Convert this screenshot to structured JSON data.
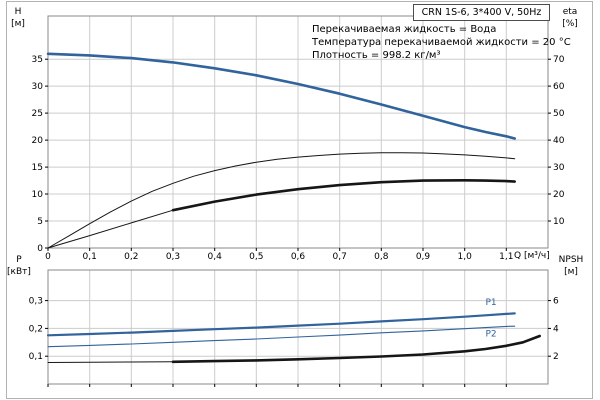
{
  "title": "CRN 1S-6, 3*400 V, 50Hz",
  "annotations": [
    "Перекачиваемая жидкость = Вода",
    "Температура перекачиваемой жидкости = 20 °C",
    "Плотность = 998.2 кг/м³"
  ],
  "axis_corners": {
    "top_left": {
      "name": "H",
      "unit": "[м]"
    },
    "top_right": {
      "name": "eta",
      "unit": "[%]"
    },
    "bottom_left": {
      "name": "P",
      "unit": "[кВт]"
    },
    "bottom_right": {
      "name": "NPSH",
      "unit": "[м]"
    }
  },
  "colors": {
    "blue": "#31639c",
    "black": "#161616",
    "grid": "#cccccc",
    "axis": "#8a8a8a"
  },
  "chart_data": [
    {
      "type": "line",
      "name": "head-efficiency",
      "x_axis": {
        "label": "Q [м³/ч]",
        "min": 0,
        "max": 1.2,
        "tick_values": [
          0,
          0.1,
          0.2,
          0.3,
          0.4,
          0.5,
          0.6,
          0.7,
          0.8,
          0.9,
          1.0,
          1.1
        ],
        "tick_labels": [
          "0",
          "0,1",
          "0,2",
          "0,3",
          "0,4",
          "0,5",
          "0,6",
          "0,7",
          "0,8",
          "0,9",
          "1,0",
          "1,1"
        ]
      },
      "y_left": {
        "label": "H [м]",
        "min": 0,
        "max": 43,
        "tick_values": [
          0,
          5,
          10,
          15,
          20,
          25,
          30,
          35
        ],
        "tick_labels": [
          "0",
          "5",
          "10",
          "15",
          "20",
          "25",
          "30",
          "35"
        ]
      },
      "y_right": {
        "label": "eta [%]",
        "min": 0,
        "max": 86,
        "tick_values": [
          10,
          20,
          30,
          40,
          50,
          60,
          70
        ],
        "tick_labels": [
          "10",
          "20",
          "30",
          "40",
          "50",
          "60",
          "70"
        ]
      },
      "series": [
        {
          "name": "head-curve",
          "axis": "left",
          "color": "#31639c",
          "width": 2.6,
          "points": [
            [
              0,
              36.0
            ],
            [
              0.1,
              35.7
            ],
            [
              0.2,
              35.2
            ],
            [
              0.3,
              34.4
            ],
            [
              0.4,
              33.3
            ],
            [
              0.5,
              32.0
            ],
            [
              0.6,
              30.4
            ],
            [
              0.7,
              28.6
            ],
            [
              0.8,
              26.6
            ],
            [
              0.9,
              24.5
            ],
            [
              1.0,
              22.4
            ],
            [
              1.05,
              21.5
            ],
            [
              1.1,
              20.7
            ],
            [
              1.12,
              20.3
            ]
          ]
        },
        {
          "name": "eta-pump",
          "axis": "right",
          "color": "#161616",
          "width": 1,
          "points": [
            [
              0,
              0
            ],
            [
              0.05,
              4.5
            ],
            [
              0.1,
              9.0
            ],
            [
              0.15,
              13.4
            ],
            [
              0.2,
              17.4
            ],
            [
              0.25,
              21.0
            ],
            [
              0.3,
              24.0
            ],
            [
              0.35,
              26.6
            ],
            [
              0.4,
              28.7
            ],
            [
              0.45,
              30.4
            ],
            [
              0.5,
              31.8
            ],
            [
              0.55,
              32.9
            ],
            [
              0.6,
              33.7
            ],
            [
              0.65,
              34.3
            ],
            [
              0.7,
              34.8
            ],
            [
              0.75,
              35.1
            ],
            [
              0.8,
              35.3
            ],
            [
              0.85,
              35.3
            ],
            [
              0.9,
              35.2
            ],
            [
              0.95,
              34.9
            ],
            [
              1.0,
              34.5
            ],
            [
              1.05,
              34.0
            ],
            [
              1.1,
              33.4
            ],
            [
              1.12,
              33.1
            ]
          ]
        },
        {
          "name": "eta-duty-thin",
          "axis": "right",
          "color": "#161616",
          "width": 1,
          "points": [
            [
              0,
              0
            ],
            [
              0.1,
              4.6
            ],
            [
              0.2,
              9.3
            ],
            [
              0.3,
              14.0
            ]
          ]
        },
        {
          "name": "eta-duty-thick",
          "axis": "right",
          "color": "#161616",
          "width": 2.6,
          "points": [
            [
              0.3,
              14.0
            ],
            [
              0.4,
              17.2
            ],
            [
              0.5,
              19.8
            ],
            [
              0.6,
              21.8
            ],
            [
              0.7,
              23.3
            ],
            [
              0.8,
              24.4
            ],
            [
              0.9,
              25.0
            ],
            [
              1.0,
              25.1
            ],
            [
              1.05,
              25.0
            ],
            [
              1.1,
              24.8
            ],
            [
              1.12,
              24.6
            ]
          ]
        }
      ],
      "curve_labels": []
    },
    {
      "type": "line",
      "name": "power-npsh",
      "x_axis": {
        "label": "",
        "min": 0,
        "max": 1.2,
        "tick_values": [
          0,
          0.1,
          0.2,
          0.3,
          0.4,
          0.5,
          0.6,
          0.7,
          0.8,
          0.9,
          1.0,
          1.1
        ]
      },
      "y_left": {
        "label": "P [кВт]",
        "min": 0,
        "max": 0.41,
        "tick_values": [
          0.1,
          0.2,
          0.3
        ],
        "tick_labels": [
          "0,1",
          "0,2",
          "0,3"
        ]
      },
      "y_right": {
        "label": "NPSH [м]",
        "min": 0,
        "max": 8.2,
        "tick_values": [
          2,
          4,
          6
        ],
        "tick_labels": [
          "2",
          "4",
          "6"
        ]
      },
      "series": [
        {
          "name": "P1-curve",
          "axis": "left",
          "color": "#31639c",
          "width": 2.2,
          "points": [
            [
              0,
              0.175
            ],
            [
              0.1,
              0.18
            ],
            [
              0.2,
              0.185
            ],
            [
              0.3,
              0.191
            ],
            [
              0.4,
              0.197
            ],
            [
              0.5,
              0.203
            ],
            [
              0.6,
              0.21
            ],
            [
              0.7,
              0.217
            ],
            [
              0.8,
              0.225
            ],
            [
              0.9,
              0.233
            ],
            [
              1.0,
              0.242
            ],
            [
              1.05,
              0.247
            ],
            [
              1.1,
              0.252
            ],
            [
              1.12,
              0.254
            ]
          ]
        },
        {
          "name": "P2-curve",
          "axis": "left",
          "color": "#31639c",
          "width": 1.1,
          "points": [
            [
              0,
              0.134
            ],
            [
              0.1,
              0.139
            ],
            [
              0.2,
              0.144
            ],
            [
              0.3,
              0.15
            ],
            [
              0.4,
              0.156
            ],
            [
              0.5,
              0.162
            ],
            [
              0.6,
              0.169
            ],
            [
              0.7,
              0.176
            ],
            [
              0.8,
              0.184
            ],
            [
              0.9,
              0.191
            ],
            [
              1.0,
              0.199
            ],
            [
              1.05,
              0.203
            ],
            [
              1.1,
              0.207
            ],
            [
              1.12,
              0.208
            ]
          ]
        },
        {
          "name": "npsh-thin",
          "axis": "right",
          "color": "#161616",
          "width": 1,
          "points": [
            [
              0,
              1.55
            ],
            [
              0.1,
              1.56
            ],
            [
              0.2,
              1.58
            ],
            [
              0.3,
              1.6
            ]
          ]
        },
        {
          "name": "npsh-thick",
          "axis": "right",
          "color": "#161616",
          "width": 2.6,
          "points": [
            [
              0.3,
              1.6
            ],
            [
              0.4,
              1.65
            ],
            [
              0.5,
              1.7
            ],
            [
              0.6,
              1.78
            ],
            [
              0.7,
              1.87
            ],
            [
              0.8,
              1.98
            ],
            [
              0.9,
              2.12
            ],
            [
              1.0,
              2.35
            ],
            [
              1.05,
              2.52
            ],
            [
              1.1,
              2.75
            ],
            [
              1.14,
              3.0
            ],
            [
              1.18,
              3.45
            ]
          ]
        }
      ],
      "curve_labels": [
        {
          "text": "P1",
          "x": 1.05,
          "y": 0.285,
          "color": "#31639c"
        },
        {
          "text": "P2",
          "x": 1.05,
          "y": 0.17,
          "color": "#31639c"
        }
      ]
    }
  ]
}
